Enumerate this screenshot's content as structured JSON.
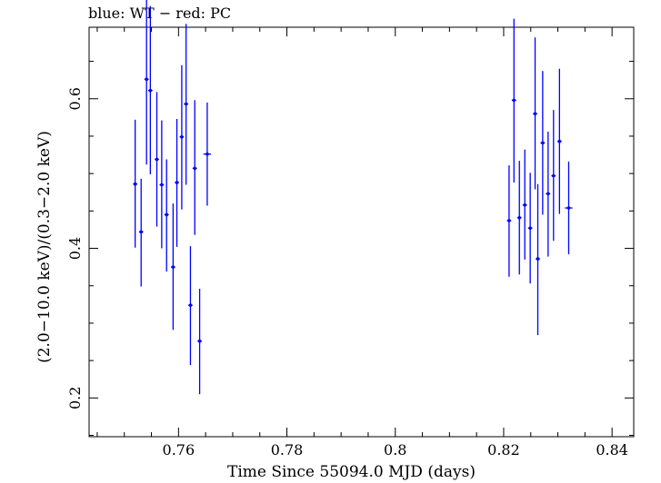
{
  "chart_data": {
    "type": "scatter",
    "title": "blue: WT − red: PC",
    "xlabel": "Time Since 55094.0 MJD (days)",
    "ylabel": "(2.0−10.0 keV)/(0.3−2.0 keV)",
    "xlim": [
      0.7435,
      0.844
    ],
    "ylim": [
      0.1482,
      0.6956
    ],
    "xticks": [
      0.76,
      0.78,
      0.8,
      0.82,
      0.84
    ],
    "xtick_labels": [
      "0.76",
      "0.78",
      "0.8",
      "0.82",
      "0.84"
    ],
    "yticks": [
      0.2,
      0.4,
      0.6
    ],
    "ytick_labels": [
      "0.2",
      "0.4",
      "0.6"
    ],
    "grid": false,
    "series": [
      {
        "color": "#0000ff",
        "points": [
          {
            "x": 0.752,
            "y": 0.486,
            "ylo": 0.401,
            "yhi": 0.572,
            "xerr": 0.0004
          },
          {
            "x": 0.7531,
            "y": 0.422,
            "ylo": 0.349,
            "yhi": 0.493,
            "xerr": 0.0004
          },
          {
            "x": 0.7541,
            "y": 0.626,
            "ylo": 0.512,
            "yhi": 0.741,
            "xerr": 0.0004
          },
          {
            "x": 0.7548,
            "y": 0.611,
            "ylo": 0.499,
            "yhi": 0.724,
            "xerr": 0.0004
          },
          {
            "x": 0.756,
            "y": 0.519,
            "ylo": 0.429,
            "yhi": 0.609,
            "xerr": 0.0004
          },
          {
            "x": 0.7569,
            "y": 0.485,
            "ylo": 0.4,
            "yhi": 0.571,
            "xerr": 0.0004
          },
          {
            "x": 0.7578,
            "y": 0.445,
            "ylo": 0.369,
            "yhi": 0.519,
            "xerr": 0.0004
          },
          {
            "x": 0.759,
            "y": 0.375,
            "ylo": 0.291,
            "yhi": 0.46,
            "xerr": 0.0004
          },
          {
            "x": 0.7597,
            "y": 0.488,
            "ylo": 0.402,
            "yhi": 0.573,
            "xerr": 0.0004
          },
          {
            "x": 0.7606,
            "y": 0.549,
            "ylo": 0.452,
            "yhi": 0.645,
            "xerr": 0.0004
          },
          {
            "x": 0.7614,
            "y": 0.593,
            "ylo": 0.485,
            "yhi": 0.7,
            "xerr": 0.0004
          },
          {
            "x": 0.7622,
            "y": 0.324,
            "ylo": 0.244,
            "yhi": 0.403,
            "xerr": 0.0004
          },
          {
            "x": 0.763,
            "y": 0.507,
            "ylo": 0.418,
            "yhi": 0.598,
            "xerr": 0.0004
          },
          {
            "x": 0.7639,
            "y": 0.276,
            "ylo": 0.205,
            "yhi": 0.346,
            "xerr": 0.0004
          },
          {
            "x": 0.7653,
            "y": 0.526,
            "ylo": 0.457,
            "yhi": 0.595,
            "xerr": 0.0007
          },
          {
            "x": 0.821,
            "y": 0.437,
            "ylo": 0.362,
            "yhi": 0.511,
            "xerr": 0.0004
          },
          {
            "x": 0.8219,
            "y": 0.598,
            "ylo": 0.488,
            "yhi": 0.707,
            "xerr": 0.0004
          },
          {
            "x": 0.8229,
            "y": 0.441,
            "ylo": 0.365,
            "yhi": 0.517,
            "xerr": 0.0004
          },
          {
            "x": 0.8239,
            "y": 0.458,
            "ylo": 0.385,
            "yhi": 0.532,
            "xerr": 0.0004
          },
          {
            "x": 0.8249,
            "y": 0.427,
            "ylo": 0.353,
            "yhi": 0.501,
            "xerr": 0.0004
          },
          {
            "x": 0.8258,
            "y": 0.58,
            "ylo": 0.479,
            "yhi": 0.682,
            "xerr": 0.0004
          },
          {
            "x": 0.8263,
            "y": 0.386,
            "ylo": 0.284,
            "yhi": 0.486,
            "xerr": 0.0004
          },
          {
            "x": 0.8272,
            "y": 0.541,
            "ylo": 0.445,
            "yhi": 0.637,
            "xerr": 0.0004
          },
          {
            "x": 0.8282,
            "y": 0.473,
            "ylo": 0.389,
            "yhi": 0.556,
            "xerr": 0.0004
          },
          {
            "x": 0.8292,
            "y": 0.497,
            "ylo": 0.41,
            "yhi": 0.585,
            "xerr": 0.0004
          },
          {
            "x": 0.8303,
            "y": 0.543,
            "ylo": 0.446,
            "yhi": 0.64,
            "xerr": 0.0004
          },
          {
            "x": 0.832,
            "y": 0.454,
            "ylo": 0.392,
            "yhi": 0.516,
            "xerr": 0.0007
          }
        ]
      }
    ]
  }
}
